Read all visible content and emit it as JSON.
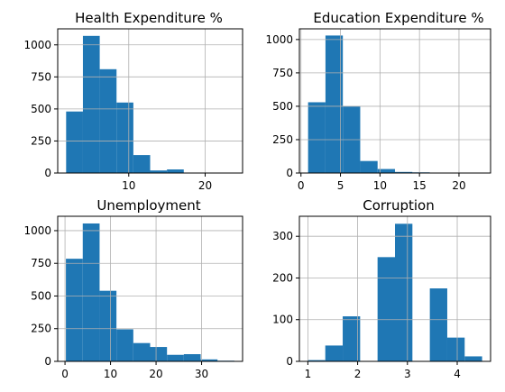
{
  "chart_data": [
    {
      "type": "bar",
      "title": "Health Expenditure %",
      "bins": [
        {
          "x0": 1.8,
          "x1": 4.0,
          "value": 480
        },
        {
          "x0": 4.0,
          "x1": 6.2,
          "value": 1070
        },
        {
          "x0": 6.2,
          "x1": 8.4,
          "value": 810
        },
        {
          "x0": 8.4,
          "x1": 10.6,
          "value": 550
        },
        {
          "x0": 10.6,
          "x1": 12.8,
          "value": 140
        },
        {
          "x0": 12.8,
          "x1": 15.0,
          "value": 20
        },
        {
          "x0": 15.0,
          "x1": 17.2,
          "value": 28
        },
        {
          "x0": 17.2,
          "x1": 19.4,
          "value": 2
        },
        {
          "x0": 19.4,
          "x1": 21.6,
          "value": 1
        },
        {
          "x0": 21.6,
          "x1": 23.8,
          "value": 2
        }
      ],
      "xlim": [
        0.7,
        24.9
      ],
      "ylim": [
        0,
        1125
      ],
      "xticks": [
        10,
        20
      ],
      "yticks": [
        0,
        250,
        500,
        750,
        1000
      ],
      "grid": true
    },
    {
      "type": "bar",
      "title": "Education Expenditure %",
      "bins": [
        {
          "x0": 0.9,
          "x1": 3.1,
          "value": 530
        },
        {
          "x0": 3.1,
          "x1": 5.3,
          "value": 1030
        },
        {
          "x0": 5.3,
          "x1": 7.5,
          "value": 500
        },
        {
          "x0": 7.5,
          "x1": 9.7,
          "value": 90
        },
        {
          "x0": 9.7,
          "x1": 11.9,
          "value": 30
        },
        {
          "x0": 11.9,
          "x1": 14.1,
          "value": 8
        },
        {
          "x0": 14.1,
          "x1": 16.3,
          "value": 5
        },
        {
          "x0": 16.3,
          "x1": 18.5,
          "value": 1
        },
        {
          "x0": 18.5,
          "x1": 20.7,
          "value": 1
        },
        {
          "x0": 20.7,
          "x1": 22.9,
          "value": 1
        }
      ],
      "xlim": [
        -0.2,
        24.0
      ],
      "ylim": [
        0,
        1080
      ],
      "xticks": [
        0,
        5,
        10,
        15,
        20
      ],
      "yticks": [
        0,
        250,
        500,
        750,
        1000
      ],
      "grid": true
    },
    {
      "type": "bar",
      "title": "Unemployment",
      "bins": [
        {
          "x0": 0.2,
          "x1": 3.9,
          "value": 785
        },
        {
          "x0": 3.9,
          "x1": 7.6,
          "value": 1055
        },
        {
          "x0": 7.6,
          "x1": 11.3,
          "value": 540
        },
        {
          "x0": 11.3,
          "x1": 15.0,
          "value": 245
        },
        {
          "x0": 15.0,
          "x1": 18.7,
          "value": 140
        },
        {
          "x0": 18.7,
          "x1": 22.4,
          "value": 110
        },
        {
          "x0": 22.4,
          "x1": 26.1,
          "value": 50
        },
        {
          "x0": 26.1,
          "x1": 29.8,
          "value": 55
        },
        {
          "x0": 29.8,
          "x1": 33.5,
          "value": 15
        },
        {
          "x0": 33.5,
          "x1": 37.2,
          "value": 5
        }
      ],
      "xlim": [
        -1.6,
        39.0
      ],
      "ylim": [
        0,
        1110
      ],
      "xticks": [
        0,
        10,
        20,
        30
      ],
      "yticks": [
        0,
        250,
        500,
        750,
        1000
      ],
      "grid": true
    },
    {
      "type": "bar",
      "title": "Corruption",
      "bins": [
        {
          "x0": 1.0,
          "x1": 1.35,
          "value": 3
        },
        {
          "x0": 1.35,
          "x1": 1.7,
          "value": 38
        },
        {
          "x0": 1.7,
          "x1": 2.05,
          "value": 108
        },
        {
          "x0": 2.05,
          "x1": 2.4,
          "value": 0
        },
        {
          "x0": 2.4,
          "x1": 2.75,
          "value": 250
        },
        {
          "x0": 2.75,
          "x1": 3.1,
          "value": 330
        },
        {
          "x0": 3.1,
          "x1": 3.45,
          "value": 0
        },
        {
          "x0": 3.45,
          "x1": 3.8,
          "value": 175
        },
        {
          "x0": 3.8,
          "x1": 4.15,
          "value": 57
        },
        {
          "x0": 4.15,
          "x1": 4.5,
          "value": 12
        }
      ],
      "xlim": [
        0.83,
        4.67
      ],
      "ylim": [
        0,
        348
      ],
      "xticks": [
        1,
        2,
        3,
        4
      ],
      "yticks": [
        0,
        100,
        200,
        300
      ],
      "grid": true
    }
  ],
  "bar_color": "#1f77b4"
}
